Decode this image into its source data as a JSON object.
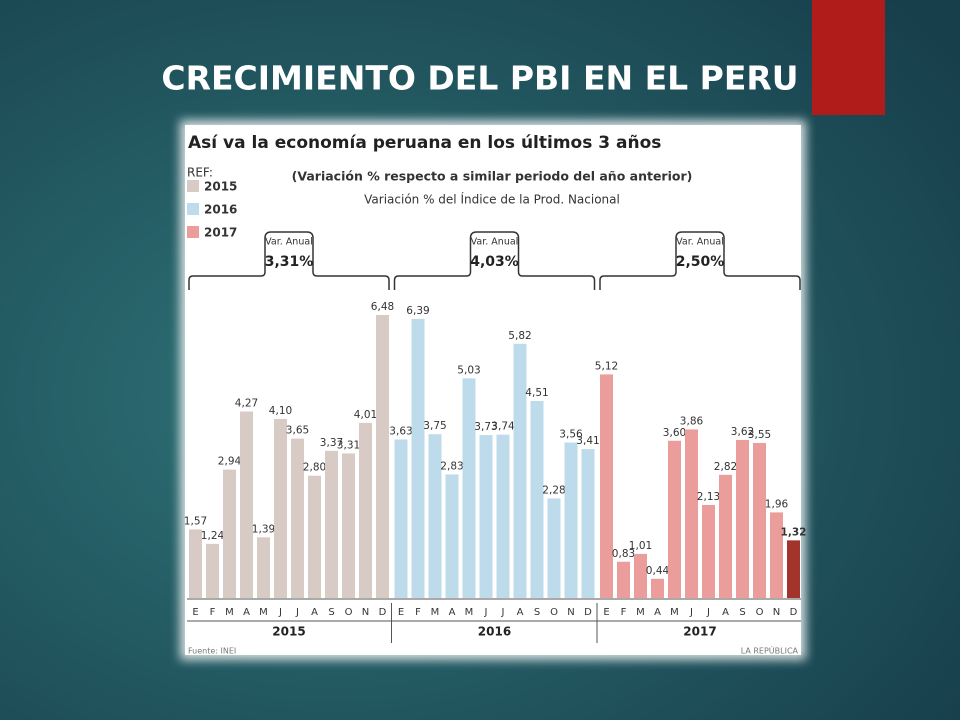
{
  "slide_title": "CRECIMIENTO DEL PBI EN EL PERU",
  "chart_data": {
    "type": "bar",
    "title": "Así va la economía peruana en los últimos 3 años",
    "subtitle": "(Variación % respecto a similar periodo del año anterior)",
    "subtitle2": "Variación % del Índice de la Prod. Nacional",
    "legend_title": "REF:",
    "categories": [
      "E",
      "F",
      "M",
      "A",
      "M",
      "J",
      "J",
      "A",
      "S",
      "O",
      "N",
      "D"
    ],
    "series": [
      {
        "name": "2015",
        "color": "#d8cac4",
        "annual_label": "Var. Anual",
        "annual_value": 3.31,
        "annual_value_label": "3,31%",
        "values": [
          1.57,
          1.24,
          2.94,
          4.27,
          1.39,
          4.1,
          3.65,
          2.8,
          3.37,
          3.31,
          4.01,
          6.48
        ],
        "value_labels": [
          "1,57",
          "1,24",
          "2,94",
          "4,27",
          "1,39",
          "4,10",
          "3,65",
          "2,80",
          "3,37",
          "3,31",
          "4,01",
          "6,48"
        ]
      },
      {
        "name": "2016",
        "color": "#bddbea",
        "annual_label": "Var. Anual",
        "annual_value": 4.03,
        "annual_value_label": "4,03%",
        "values": [
          3.63,
          6.39,
          3.75,
          2.83,
          5.03,
          3.73,
          3.74,
          5.82,
          4.51,
          2.28,
          3.56,
          3.41
        ],
        "value_labels": [
          "3,63",
          "6,39",
          "3,75",
          "2,83",
          "5,03",
          "3,73",
          "3,74",
          "5,82",
          "4,51",
          "2,28",
          "3,56",
          "3,41"
        ]
      },
      {
        "name": "2017",
        "color": "#ea9d9a",
        "annual_label": "Var. Anual",
        "annual_value": 2.5,
        "annual_value_label": "2,50%",
        "values": [
          5.12,
          0.83,
          1.01,
          0.44,
          3.6,
          3.86,
          2.13,
          2.82,
          3.62,
          3.55,
          1.96,
          1.32
        ],
        "value_labels": [
          "5,12",
          "0,83",
          "1,01",
          "0,44",
          "3,60",
          "3,86",
          "2,13",
          "2,82",
          "3,62",
          "3,55",
          "1,96",
          "1,32"
        ],
        "value_colors": [
          "#ea9d9a",
          "#ea9d9a",
          "#ea9d9a",
          "#ea9d9a",
          "#ea9d9a",
          "#ea9d9a",
          "#ea9d9a",
          "#ea9d9a",
          "#ea9d9a",
          "#ea9d9a",
          "#ea9d9a",
          "#a3342b"
        ]
      }
    ],
    "source": "Fuente: INEI",
    "credit": "LA REPÚBLICA"
  }
}
